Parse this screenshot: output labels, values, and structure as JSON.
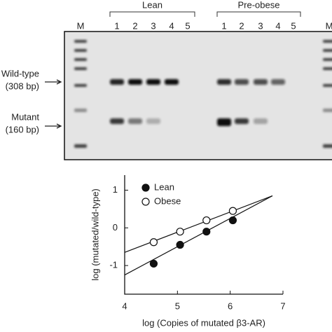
{
  "gel": {
    "marker_label": "M",
    "groups": [
      {
        "label": "Lean",
        "lanes": [
          "1",
          "2",
          "3",
          "4",
          "5"
        ]
      },
      {
        "label": "Pre-obese",
        "lanes": [
          "1",
          "2",
          "3",
          "4",
          "5"
        ]
      }
    ],
    "band_labels": [
      {
        "name": "Wild-type",
        "size": "(308 bp)"
      },
      {
        "name": "Mutant",
        "size": "(160 bp)"
      }
    ]
  },
  "chart_data": {
    "type": "scatter",
    "x_label": "log (Copies of mutated β3-AR)",
    "y_label": "log (mutated/wild-type)",
    "series": [
      {
        "name": "Lean",
        "color": "#111111",
        "filled": true,
        "x": [
          4.55,
          5.05,
          5.55,
          6.05
        ],
        "values": [
          -0.95,
          -0.45,
          -0.1,
          0.2
        ],
        "fit_x": [
          4.0,
          6.8
        ],
        "fit_y": [
          -1.25,
          0.85
        ]
      },
      {
        "name": "Obese",
        "color": "#111111",
        "filled": false,
        "x": [
          4.55,
          5.05,
          5.55,
          6.05
        ],
        "values": [
          -0.38,
          -0.1,
          0.2,
          0.45
        ],
        "fit_x": [
          4.0,
          6.8
        ],
        "fit_y": [
          -0.65,
          0.85
        ]
      }
    ],
    "xlim": [
      4,
      7
    ],
    "xticks": [
      4,
      5,
      6,
      7
    ],
    "ylim": [
      -1.76,
      1.4
    ],
    "yticks": [
      -1,
      0,
      1
    ],
    "legend": "top-left"
  }
}
